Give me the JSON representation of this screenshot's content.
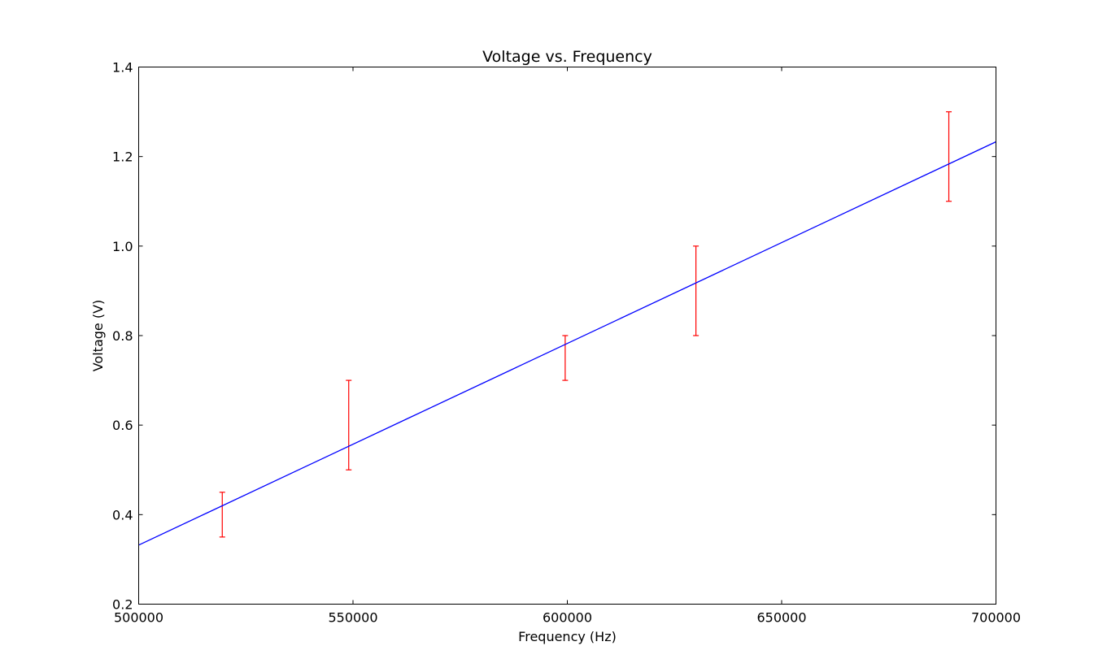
{
  "chart_data": {
    "type": "scatter",
    "title": "Voltage vs. Frequency",
    "xlabel": "Frequency (Hz)",
    "ylabel": "Voltage (V)",
    "xlim": [
      500000,
      700000
    ],
    "ylim": [
      0.2,
      1.4
    ],
    "xticks": [
      "500000",
      "550000",
      "600000",
      "650000",
      "700000"
    ],
    "yticks": [
      "0.2",
      "0.4",
      "0.6",
      "0.8",
      "1.0",
      "1.2",
      "1.4"
    ],
    "grid": false,
    "legend": "none",
    "series": [
      {
        "type": "errorbar",
        "color": "#ff0000",
        "points": [
          {
            "x": 519500,
            "y": 0.4,
            "ylow": 0.35,
            "yhigh": 0.45
          },
          {
            "x": 549000,
            "y": 0.6,
            "ylow": 0.5,
            "yhigh": 0.7
          },
          {
            "x": 599500,
            "y": 0.75,
            "ylow": 0.7,
            "yhigh": 0.8
          },
          {
            "x": 630000,
            "y": 0.9,
            "ylow": 0.8,
            "yhigh": 1.0
          },
          {
            "x": 689000,
            "y": 1.2,
            "ylow": 1.1,
            "yhigh": 1.3
          }
        ]
      },
      {
        "type": "line",
        "color": "#0000ff",
        "x": [
          500000,
          700000
        ],
        "y": [
          0.332,
          1.233
        ]
      }
    ]
  }
}
